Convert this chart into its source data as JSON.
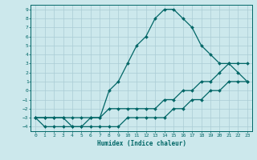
{
  "xlabel": "Humidex (Indice chaleur)",
  "bg_color": "#cce8ec",
  "grid_color": "#aaccd4",
  "line_color": "#006666",
  "xlim": [
    -0.5,
    23.5
  ],
  "ylim": [
    -4.5,
    9.5
  ],
  "xticks": [
    0,
    1,
    2,
    3,
    4,
    5,
    6,
    7,
    8,
    9,
    10,
    11,
    12,
    13,
    14,
    15,
    16,
    17,
    18,
    19,
    20,
    21,
    22,
    23
  ],
  "yticks": [
    -4,
    -3,
    -2,
    -1,
    0,
    1,
    2,
    3,
    4,
    5,
    6,
    7,
    8,
    9
  ],
  "curve1_x": [
    0,
    1,
    2,
    3,
    4,
    5,
    6,
    7,
    8,
    9,
    10,
    11,
    12,
    13,
    14,
    15,
    16,
    17,
    18,
    19,
    20,
    21,
    22,
    23
  ],
  "curve1_y": [
    -3,
    -4,
    -4,
    -4,
    -4,
    -4,
    -4,
    -4,
    -4,
    -4,
    -3,
    -3,
    -3,
    -3,
    -3,
    -2,
    -2,
    -1,
    -1,
    0,
    0,
    1,
    1,
    1
  ],
  "curve2_x": [
    0,
    1,
    2,
    3,
    4,
    5,
    6,
    7,
    8,
    9,
    10,
    11,
    12,
    13,
    14,
    15,
    16,
    17,
    18,
    19,
    20,
    21,
    22,
    23
  ],
  "curve2_y": [
    -3,
    -3,
    -3,
    -3,
    -3,
    -3,
    -3,
    -3,
    -2,
    -2,
    -2,
    -2,
    -2,
    -2,
    -1,
    -1,
    0,
    0,
    1,
    1,
    2,
    3,
    3,
    3
  ],
  "curve3_x": [
    0,
    1,
    2,
    3,
    4,
    5,
    6,
    7,
    8,
    9,
    10,
    11,
    12,
    13,
    14,
    15,
    16,
    17,
    18,
    19,
    20,
    21,
    22,
    23
  ],
  "curve3_y": [
    -3,
    -3,
    -3,
    -3,
    -4,
    -4,
    -3,
    -3,
    0,
    1,
    3,
    5,
    6,
    8,
    9,
    9,
    8,
    7,
    5,
    4,
    3,
    3,
    2,
    1
  ],
  "markersize": 2.0,
  "linewidth": 0.9
}
